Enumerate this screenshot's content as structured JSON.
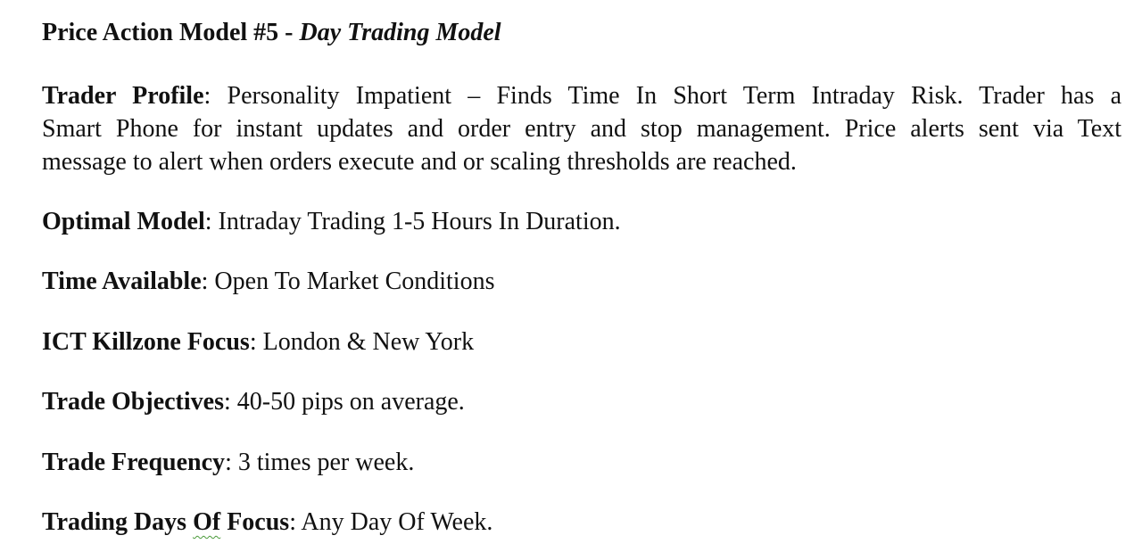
{
  "title": {
    "main": "Price Action Model #5 - ",
    "sub": "Day Trading Model"
  },
  "trader_profile": {
    "label": "Trader Profile",
    "sep": ":  ",
    "line1": "Personality Impatient – Finds  Time In Short Term Intraday Risk.  Trader has a",
    "line2": "Smart Phone for instant updates and order entry and stop management.  Price alerts sent via Text",
    "line3": "message to alert when orders execute and or scaling thresholds are reached."
  },
  "optimal_model": {
    "label": "Optimal Model",
    "sep": ":  ",
    "value": "Intraday Trading 1-5 Hours In Duration."
  },
  "time_available": {
    "label": "Time Available",
    "sep": ":  ",
    "value": "Open To Market Conditions"
  },
  "killzone": {
    "label": "ICT Killzone  Focus",
    "sep": ":  ",
    "value": "London & New York"
  },
  "trade_objectives": {
    "label": "Trade Objectives",
    "sep": ": ",
    "value": "40-50 pips on average."
  },
  "trade_frequency": {
    "label": "Trade Frequency",
    "sep": ":  ",
    "value": "3 times per week."
  },
  "trading_days": {
    "label_a": "Trading Days ",
    "label_b": "Of",
    "label_c": " Focus",
    "sep": ": ",
    "value": "Any Day Of Week."
  }
}
